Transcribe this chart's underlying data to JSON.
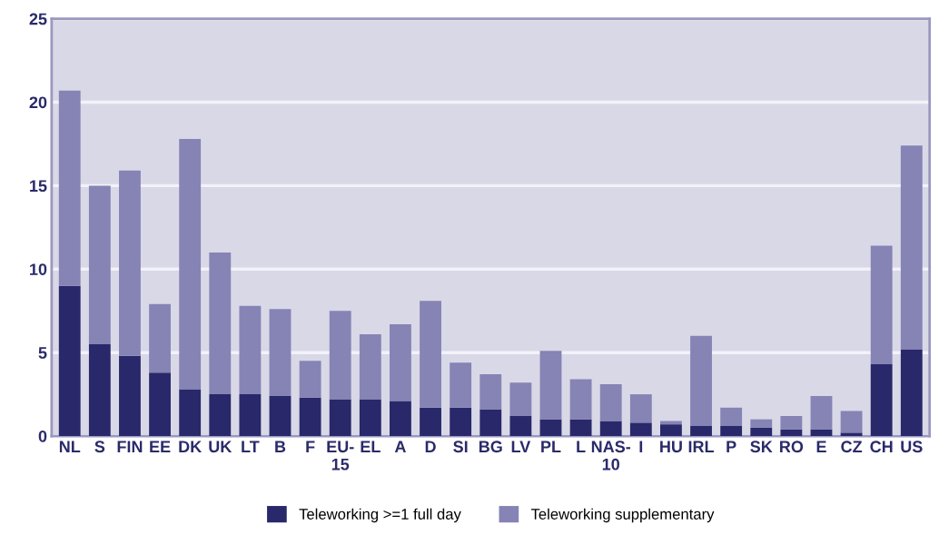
{
  "chart_data": {
    "type": "bar",
    "stacked": true,
    "categories": [
      "NL",
      "S",
      "FIN",
      "EE",
      "DK",
      "UK",
      "LT",
      "B",
      "F",
      "EU-\n15",
      "EL",
      "A",
      "D",
      "SI",
      "BG",
      "LV",
      "PL",
      "L",
      "NAS-\n10",
      "I",
      "HU",
      "IRL",
      "P",
      "SK",
      "RO",
      "E",
      "CZ",
      "CH",
      "US"
    ],
    "series": [
      {
        "name": "Teleworking >=1 full day",
        "color": "#28286a",
        "values": [
          9.0,
          5.5,
          4.8,
          3.8,
          2.8,
          2.5,
          2.5,
          2.4,
          2.3,
          2.2,
          2.2,
          2.1,
          1.7,
          1.7,
          1.6,
          1.2,
          1.0,
          1.0,
          0.9,
          0.8,
          0.7,
          0.6,
          0.6,
          0.5,
          0.4,
          0.4,
          0.2,
          4.3,
          5.2
        ]
      },
      {
        "name": "Teleworking supplementary",
        "color": "#8683b5",
        "values": [
          11.7,
          9.5,
          11.1,
          4.1,
          15.0,
          8.5,
          5.3,
          5.2,
          2.2,
          5.3,
          3.9,
          4.6,
          6.4,
          2.7,
          2.1,
          2.0,
          4.1,
          2.4,
          2.2,
          1.7,
          0.2,
          5.4,
          1.1,
          0.5,
          0.8,
          2.0,
          1.3,
          7.1,
          12.2
        ]
      }
    ],
    "ylim": [
      0,
      25
    ],
    "yticks": [
      0,
      5,
      10,
      15,
      20,
      25
    ],
    "grid": "y",
    "legend": "bottom"
  }
}
